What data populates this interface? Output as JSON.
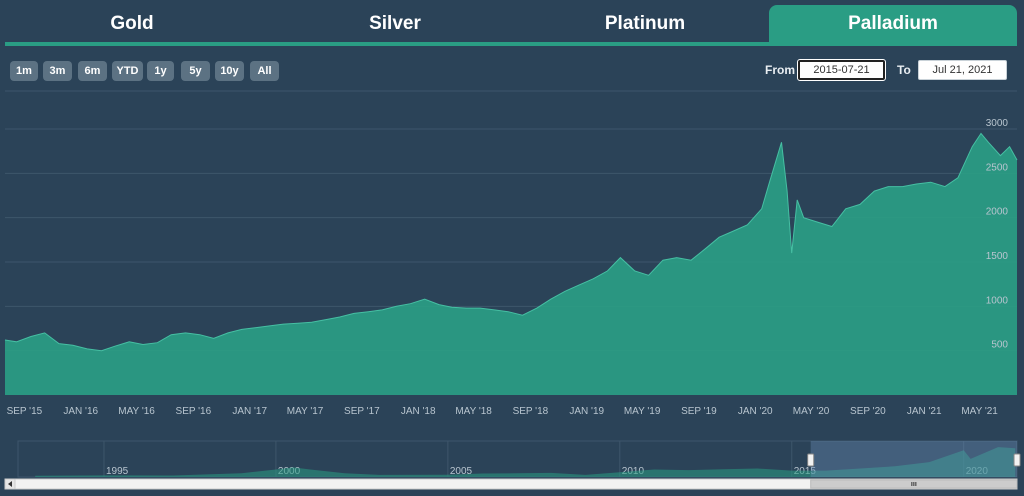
{
  "tabs": [
    {
      "label": "Gold",
      "active": false
    },
    {
      "label": "Silver",
      "active": false
    },
    {
      "label": "Platinum",
      "active": false
    },
    {
      "label": "Palladium",
      "active": true
    }
  ],
  "range_buttons": [
    "1m",
    "3m",
    "6m",
    "YTD",
    "1y",
    "5y",
    "10y",
    "All"
  ],
  "date_range": {
    "from_label": "From",
    "from_value": "2015-07-21",
    "to_label": "To",
    "to_value": "Jul 21, 2021"
  },
  "colors": {
    "background": "#2b4358",
    "accent": "#2a9d84",
    "area_fill": "#2a9d84",
    "area_line": "#46bfa3",
    "button_bg": "#5c7283"
  },
  "chart_data": {
    "type": "area",
    "title": "",
    "xlabel": "",
    "ylabel": "",
    "x_tick_labels": [
      "SEP '15",
      "JAN '16",
      "MAY '16",
      "SEP '16",
      "JAN '17",
      "MAY '17",
      "SEP '17",
      "JAN '18",
      "MAY '18",
      "SEP '18",
      "JAN '19",
      "MAY '19",
      "SEP '19",
      "JAN '20",
      "MAY '20",
      "SEP '20",
      "JAN '21",
      "MAY '21"
    ],
    "y_ticks": [
      500,
      1000,
      1500,
      2000,
      2500,
      3000
    ],
    "ylim": [
      0,
      3000
    ],
    "xlim": [
      "2015-07-21",
      "2021-07-21"
    ],
    "grid": true,
    "series": [
      {
        "x": [
          "2015-07-21",
          "2015-08-15",
          "2015-09-15",
          "2015-10-15",
          "2015-11-15",
          "2015-12-15",
          "2016-01-15",
          "2016-02-15",
          "2016-03-15",
          "2016-04-15",
          "2016-05-15",
          "2016-06-15",
          "2016-07-15",
          "2016-08-15",
          "2016-09-15",
          "2016-10-15",
          "2016-11-15",
          "2016-12-15",
          "2017-01-15",
          "2017-02-15",
          "2017-03-15",
          "2017-04-15",
          "2017-05-15",
          "2017-06-15",
          "2017-07-15",
          "2017-08-15",
          "2017-09-15",
          "2017-10-15",
          "2017-11-15",
          "2017-12-15",
          "2018-01-15",
          "2018-02-15",
          "2018-03-15",
          "2018-04-15",
          "2018-05-15",
          "2018-06-15",
          "2018-07-15",
          "2018-08-15",
          "2018-09-15",
          "2018-10-15",
          "2018-11-15",
          "2018-12-15",
          "2019-01-15",
          "2019-02-15",
          "2019-03-15",
          "2019-04-15",
          "2019-05-15",
          "2019-06-15",
          "2019-07-15",
          "2019-08-15",
          "2019-09-15",
          "2019-10-15",
          "2019-11-15",
          "2019-12-15",
          "2020-01-15",
          "2020-02-01",
          "2020-02-27",
          "2020-03-10",
          "2020-03-20",
          "2020-04-01",
          "2020-04-15",
          "2020-05-15",
          "2020-06-15",
          "2020-07-15",
          "2020-08-15",
          "2020-09-15",
          "2020-10-15",
          "2020-11-15",
          "2020-12-15",
          "2021-01-15",
          "2021-02-15",
          "2021-03-15",
          "2021-04-15",
          "2021-05-04",
          "2021-05-20",
          "2021-06-15",
          "2021-07-05",
          "2021-07-21"
        ],
        "values": [
          620,
          600,
          660,
          700,
          580,
          560,
          520,
          500,
          550,
          600,
          570,
          590,
          680,
          700,
          680,
          640,
          700,
          740,
          760,
          780,
          800,
          810,
          820,
          850,
          880,
          920,
          940,
          960,
          1000,
          1030,
          1080,
          1020,
          990,
          980,
          980,
          960,
          940,
          900,
          980,
          1080,
          1170,
          1240,
          1310,
          1400,
          1550,
          1400,
          1350,
          1520,
          1550,
          1520,
          1650,
          1780,
          1850,
          1920,
          2100,
          2400,
          2850,
          2300,
          1600,
          2200,
          2000,
          1950,
          1900,
          2100,
          2150,
          2300,
          2350,
          2350,
          2380,
          2400,
          2350,
          2450,
          2800,
          2950,
          2850,
          2700,
          2800,
          2650
        ]
      }
    ],
    "navigator": {
      "x_labels": [
        "1995",
        "2000",
        "2005",
        "2010",
        "2015",
        "2020"
      ],
      "xlim": [
        1992.5,
        2021.55
      ],
      "selected_range": [
        "2015-07-21",
        "2021-07-21"
      ],
      "x": [
        1993,
        1995,
        1997,
        1999,
        2000,
        2000.5,
        2001,
        2002,
        2003,
        2005,
        2006,
        2007,
        2008,
        2009,
        2010,
        2011,
        2012,
        2013,
        2014,
        2015,
        2016,
        2017,
        2018,
        2019,
        2020,
        2020.2,
        2021,
        2021.5
      ],
      "values": [
        120,
        150,
        140,
        350,
        700,
        900,
        700,
        350,
        200,
        220,
        330,
        350,
        380,
        200,
        450,
        700,
        650,
        720,
        800,
        600,
        600,
        800,
        1000,
        1400,
        2500,
        1700,
        2800,
        2700
      ]
    }
  }
}
